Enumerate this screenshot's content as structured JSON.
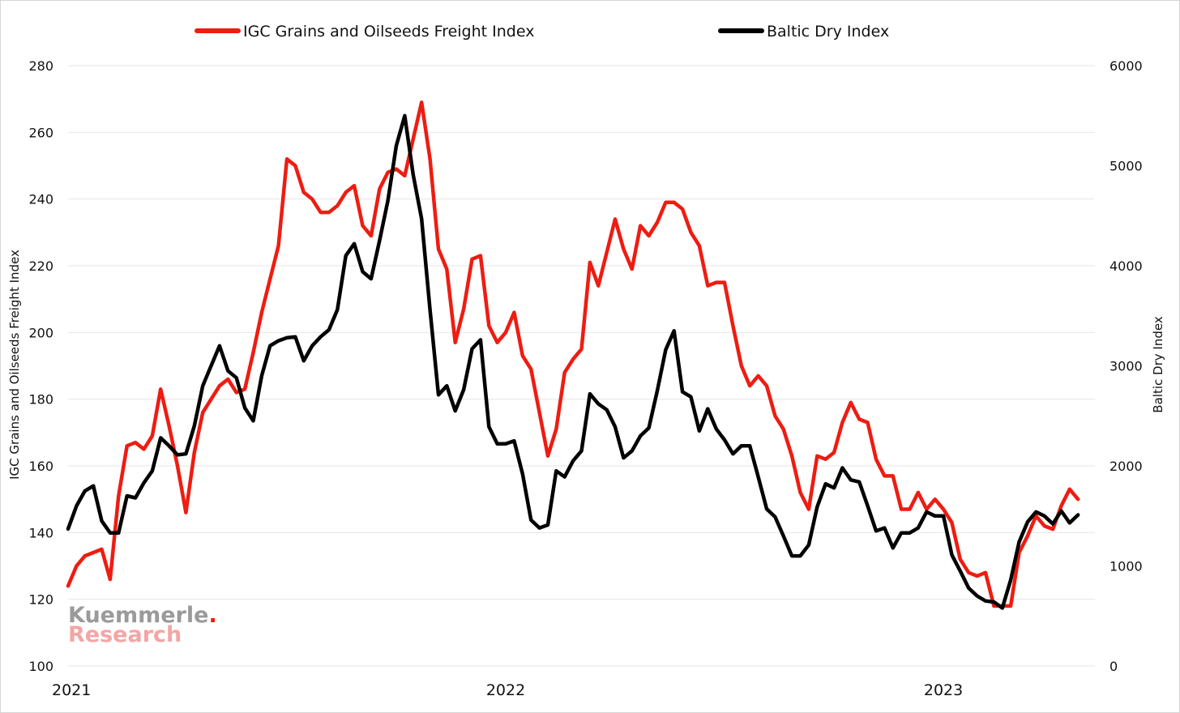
{
  "colors": {
    "igc": "#ee1c12",
    "bdi": "#000000",
    "grid": "#e6e6e6",
    "watermark_dot": "#ee1c12"
  },
  "watermark": {
    "line1": "Kuemmerle",
    "dot": ".",
    "line2": "Research"
  },
  "chart_data": {
    "type": "line",
    "x_labels": [
      "2021",
      "2022",
      "2023"
    ],
    "x_label_positions": [
      0,
      52,
      104
    ],
    "x_range": [
      0,
      122
    ],
    "legend_position": "top",
    "grid": true,
    "left_axis": {
      "label": "IGC Grains and Oilseeds Freight Index",
      "ylim": [
        100,
        280
      ],
      "ticks": [
        "100",
        "120",
        "140",
        "160",
        "180",
        "200",
        "220",
        "240",
        "260",
        "280"
      ]
    },
    "right_axis": {
      "label": "Baltic Dry Index",
      "ylim": [
        0,
        6000
      ],
      "ticks": [
        "0",
        "1000",
        "2000",
        "3000",
        "4000",
        "5000",
        "6000"
      ]
    },
    "series": [
      {
        "name": "IGC Grains and Oilseeds Freight Index",
        "axis": "left",
        "values": [
          124,
          130,
          133,
          134,
          135,
          126,
          151,
          166,
          167,
          165,
          169,
          183,
          172,
          160,
          146,
          164,
          176,
          180,
          184,
          186,
          182,
          183,
          194,
          206,
          216,
          226,
          252,
          250,
          242,
          240,
          236,
          236,
          238,
          242,
          244,
          232,
          229,
          243,
          248,
          249,
          247,
          258,
          269,
          252,
          225,
          219,
          197,
          207,
          222,
          223,
          202,
          197,
          200,
          206,
          193,
          189,
          176,
          163,
          171,
          188,
          192,
          195,
          221,
          214,
          224,
          234,
          225,
          219,
          232,
          229,
          233,
          239,
          239,
          237,
          230,
          226,
          214,
          215,
          215,
          202,
          190,
          184,
          187,
          184,
          175,
          171,
          163,
          152,
          147,
          163,
          162,
          164,
          173,
          179,
          174,
          173,
          162,
          157,
          157,
          147,
          147,
          152,
          147,
          150,
          147,
          143,
          132,
          128,
          127,
          128,
          118,
          118,
          118,
          134,
          139,
          145,
          142,
          141,
          148,
          153,
          150
        ]
      },
      {
        "name": "Baltic Dry Index",
        "axis": "right",
        "values": [
          1370,
          1600,
          1750,
          1800,
          1450,
          1330,
          1330,
          1700,
          1680,
          1830,
          1950,
          2280,
          2200,
          2110,
          2120,
          2400,
          2800,
          3000,
          3200,
          2950,
          2880,
          2580,
          2450,
          2900,
          3200,
          3250,
          3280,
          3290,
          3050,
          3200,
          3290,
          3360,
          3560,
          4100,
          4220,
          3940,
          3870,
          4250,
          4650,
          5200,
          5500,
          4910,
          4470,
          3560,
          2710,
          2800,
          2550,
          2760,
          3170,
          3260,
          2390,
          2220,
          2220,
          2250,
          1920,
          1460,
          1380,
          1410,
          1950,
          1890,
          2050,
          2150,
          2720,
          2620,
          2560,
          2390,
          2080,
          2150,
          2300,
          2380,
          2750,
          3160,
          3350,
          2740,
          2690,
          2350,
          2570,
          2370,
          2260,
          2120,
          2200,
          2200,
          1890,
          1570,
          1490,
          1300,
          1100,
          1100,
          1210,
          1590,
          1820,
          1780,
          1980,
          1860,
          1840,
          1600,
          1350,
          1380,
          1180,
          1330,
          1330,
          1380,
          1540,
          1500,
          1500,
          1110,
          950,
          780,
          700,
          650,
          640,
          580,
          860,
          1240,
          1440,
          1540,
          1500,
          1420,
          1550,
          1430,
          1510
        ]
      }
    ]
  }
}
